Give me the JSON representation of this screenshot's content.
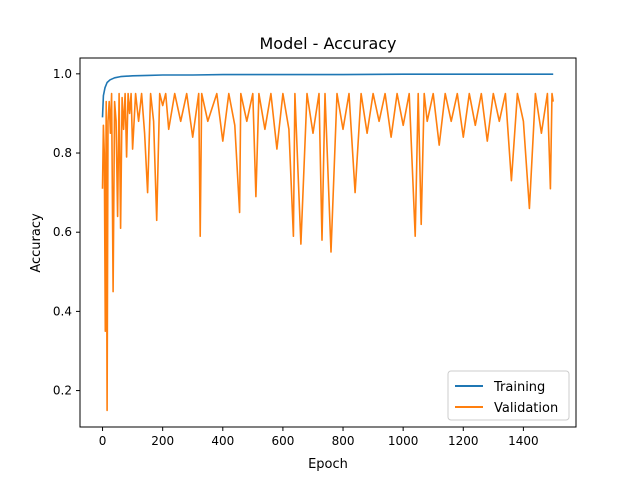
{
  "chart_data": {
    "type": "line",
    "title": "Model - Accuracy",
    "xlabel": "Epoch",
    "ylabel": "Accuracy",
    "xlim": [
      -75,
      1575
    ],
    "ylim": [
      0.108,
      1.04
    ],
    "xticks": [
      0,
      200,
      400,
      600,
      800,
      1000,
      1200,
      1400
    ],
    "yticks": [
      0.2,
      0.4,
      0.6,
      0.8,
      1.0
    ],
    "ytick_labels": [
      "0.2",
      "0.4",
      "0.6",
      "0.8",
      "1.0"
    ],
    "grid": false,
    "legend": "lower-right",
    "series": [
      {
        "name": "Training",
        "color": "#1f77b4",
        "x": [
          0,
          3,
          8,
          15,
          25,
          40,
          60,
          100,
          150,
          200,
          300,
          400,
          600,
          800,
          1000,
          1200,
          1400,
          1499
        ],
        "y": [
          0.89,
          0.945,
          0.965,
          0.978,
          0.985,
          0.99,
          0.993,
          0.995,
          0.996,
          0.997,
          0.997,
          0.998,
          0.998,
          0.998,
          0.999,
          0.999,
          0.999,
          0.999
        ]
      },
      {
        "name": "Validation",
        "color": "#ff7f0e",
        "x": [
          0,
          3,
          6,
          9,
          12,
          15,
          18,
          22,
          26,
          30,
          35,
          40,
          45,
          50,
          55,
          60,
          65,
          70,
          75,
          80,
          85,
          90,
          95,
          100,
          110,
          120,
          130,
          140,
          150,
          160,
          170,
          180,
          190,
          200,
          210,
          220,
          240,
          260,
          280,
          300,
          320,
          325,
          330,
          350,
          380,
          400,
          420,
          440,
          456,
          460,
          480,
          500,
          510,
          520,
          540,
          560,
          580,
          600,
          620,
          635,
          640,
          660,
          680,
          700,
          720,
          730,
          740,
          760,
          780,
          800,
          820,
          840,
          860,
          880,
          900,
          920,
          940,
          960,
          980,
          1000,
          1020,
          1040,
          1050,
          1060,
          1070,
          1080,
          1100,
          1120,
          1140,
          1160,
          1180,
          1200,
          1220,
          1240,
          1260,
          1280,
          1300,
          1320,
          1340,
          1360,
          1380,
          1400,
          1420,
          1440,
          1460,
          1480,
          1490,
          1495,
          1499
        ],
        "y": [
          0.71,
          0.87,
          0.8,
          0.35,
          0.93,
          0.15,
          0.88,
          0.93,
          0.85,
          0.95,
          0.45,
          0.93,
          0.88,
          0.64,
          0.95,
          0.61,
          0.94,
          0.86,
          0.95,
          0.79,
          0.95,
          0.9,
          0.95,
          0.81,
          0.95,
          0.88,
          0.95,
          0.85,
          0.7,
          0.95,
          0.88,
          0.63,
          0.95,
          0.92,
          0.95,
          0.86,
          0.95,
          0.88,
          0.95,
          0.84,
          0.95,
          0.59,
          0.95,
          0.88,
          0.95,
          0.83,
          0.95,
          0.87,
          0.65,
          0.95,
          0.88,
          0.95,
          0.69,
          0.95,
          0.86,
          0.95,
          0.81,
          0.95,
          0.86,
          0.59,
          0.95,
          0.57,
          0.95,
          0.85,
          0.95,
          0.58,
          0.95,
          0.55,
          0.95,
          0.86,
          0.95,
          0.7,
          0.95,
          0.85,
          0.95,
          0.88,
          0.95,
          0.84,
          0.95,
          0.87,
          0.95,
          0.59,
          0.95,
          0.62,
          0.95,
          0.88,
          0.95,
          0.82,
          0.95,
          0.88,
          0.95,
          0.84,
          0.95,
          0.87,
          0.95,
          0.83,
          0.95,
          0.88,
          0.95,
          0.73,
          0.95,
          0.88,
          0.66,
          0.95,
          0.85,
          0.95,
          0.71,
          0.95,
          0.93
        ]
      }
    ]
  }
}
